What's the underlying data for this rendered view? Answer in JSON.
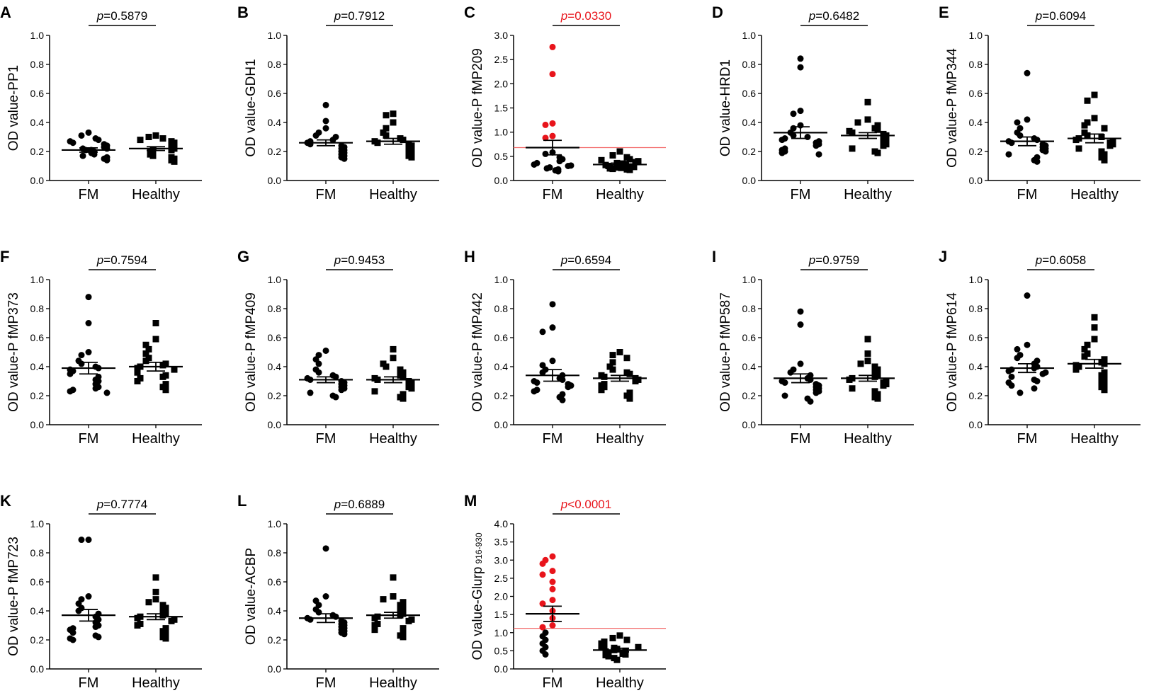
{
  "figure": {
    "x_categories": [
      "FM",
      "Healthy"
    ],
    "threshold_color": "#f26b6b",
    "highlight_color": "#e8141b",
    "point_color": "#000000"
  },
  "chart_data": [
    {
      "type": "scatter",
      "panel": "A",
      "ylabel": "OD value-PP1",
      "ylim": [
        0,
        1
      ],
      "ytick_step": 0.2,
      "ytick_decimals": 1,
      "p_label": "p",
      "p_value": "=0.5879",
      "p_highlight": false,
      "series": [
        {
          "name": "FM",
          "marker": "circle",
          "mean": 0.21,
          "sem": 0.015,
          "values": [
            0.33,
            0.31,
            0.29,
            0.28,
            0.27,
            0.26,
            0.25,
            0.24,
            0.23,
            0.22,
            0.22,
            0.21,
            0.21,
            0.2,
            0.19,
            0.18,
            0.17,
            0.16,
            0.15,
            0.14
          ]
        },
        {
          "name": "Healthy",
          "marker": "square",
          "mean": 0.22,
          "sem": 0.013,
          "values": [
            0.31,
            0.3,
            0.29,
            0.28,
            0.27,
            0.26,
            0.25,
            0.24,
            0.23,
            0.22,
            0.21,
            0.21,
            0.2,
            0.19,
            0.18,
            0.17,
            0.16,
            0.15,
            0.14,
            0.13
          ]
        }
      ]
    },
    {
      "type": "scatter",
      "panel": "B",
      "ylabel": "OD value-GDH1",
      "ylim": [
        0,
        1
      ],
      "ytick_step": 0.2,
      "ytick_decimals": 1,
      "p_label": "p",
      "p_value": "=0.7912",
      "p_highlight": false,
      "series": [
        {
          "name": "FM",
          "marker": "circle",
          "mean": 0.26,
          "sem": 0.02,
          "values": [
            0.52,
            0.41,
            0.36,
            0.33,
            0.31,
            0.3,
            0.28,
            0.27,
            0.26,
            0.25,
            0.24,
            0.23,
            0.22,
            0.21,
            0.2,
            0.19,
            0.18,
            0.17,
            0.16,
            0.15
          ]
        },
        {
          "name": "Healthy",
          "marker": "square",
          "mean": 0.27,
          "sem": 0.02,
          "values": [
            0.46,
            0.45,
            0.4,
            0.36,
            0.33,
            0.31,
            0.29,
            0.28,
            0.27,
            0.26,
            0.25,
            0.24,
            0.23,
            0.22,
            0.21,
            0.2,
            0.19,
            0.18,
            0.17,
            0.16
          ]
        }
      ]
    },
    {
      "type": "scatter",
      "panel": "C",
      "ylabel": "OD value-P fMP209",
      "ylim": [
        0,
        3
      ],
      "ytick_step": 0.5,
      "ytick_decimals": 1,
      "p_label": "p",
      "p_value": "=0.0330",
      "p_highlight": true,
      "threshold": 0.68,
      "highlight_above_threshold": true,
      "series": [
        {
          "name": "FM",
          "marker": "circle",
          "mean": 0.68,
          "sem": 0.15,
          "values": [
            2.76,
            2.2,
            1.18,
            1.15,
            0.92,
            0.88,
            0.58,
            0.55,
            0.48,
            0.44,
            0.4,
            0.36,
            0.33,
            0.31,
            0.3,
            0.27,
            0.25,
            0.23,
            0.21,
            0.19
          ]
        },
        {
          "name": "Healthy",
          "marker": "square",
          "mean": 0.33,
          "sem": 0.03,
          "values": [
            0.6,
            0.52,
            0.48,
            0.44,
            0.42,
            0.4,
            0.38,
            0.36,
            0.35,
            0.34,
            0.32,
            0.3,
            0.29,
            0.28,
            0.27,
            0.26,
            0.25,
            0.24,
            0.23,
            0.22
          ]
        }
      ]
    },
    {
      "type": "scatter",
      "panel": "D",
      "ylabel": "OD value-HRD1",
      "ylim": [
        0,
        1
      ],
      "ytick_step": 0.2,
      "ytick_decimals": 1,
      "p_label": "p",
      "p_value": "=0.6482",
      "p_highlight": false,
      "series": [
        {
          "name": "FM",
          "marker": "circle",
          "mean": 0.33,
          "sem": 0.04,
          "values": [
            0.84,
            0.78,
            0.48,
            0.46,
            0.38,
            0.36,
            0.33,
            0.31,
            0.3,
            0.29,
            0.28,
            0.27,
            0.26,
            0.25,
            0.24,
            0.22,
            0.21,
            0.2,
            0.19,
            0.18
          ]
        },
        {
          "name": "Healthy",
          "marker": "square",
          "mean": 0.31,
          "sem": 0.02,
          "values": [
            0.54,
            0.42,
            0.4,
            0.38,
            0.36,
            0.35,
            0.34,
            0.33,
            0.32,
            0.31,
            0.3,
            0.29,
            0.28,
            0.27,
            0.26,
            0.25,
            0.24,
            0.22,
            0.2,
            0.19
          ]
        }
      ]
    },
    {
      "type": "scatter",
      "panel": "E",
      "ylabel": "OD value-P fMP344",
      "ylim": [
        0,
        1
      ],
      "ytick_step": 0.2,
      "ytick_decimals": 1,
      "p_label": "p",
      "p_value": "=0.6094",
      "p_highlight": false,
      "series": [
        {
          "name": "FM",
          "marker": "circle",
          "mean": 0.27,
          "sem": 0.03,
          "values": [
            0.74,
            0.42,
            0.4,
            0.36,
            0.33,
            0.31,
            0.29,
            0.28,
            0.27,
            0.26,
            0.25,
            0.24,
            0.23,
            0.22,
            0.21,
            0.2,
            0.18,
            0.16,
            0.14,
            0.13
          ]
        },
        {
          "name": "Healthy",
          "marker": "square",
          "mean": 0.29,
          "sem": 0.03,
          "values": [
            0.59,
            0.55,
            0.43,
            0.4,
            0.38,
            0.36,
            0.33,
            0.31,
            0.3,
            0.29,
            0.28,
            0.27,
            0.26,
            0.25,
            0.24,
            0.22,
            0.2,
            0.18,
            0.16,
            0.14
          ]
        }
      ]
    },
    {
      "type": "scatter",
      "panel": "F",
      "ylabel": "OD value-P fMP373",
      "ylim": [
        0,
        1
      ],
      "ytick_step": 0.2,
      "ytick_decimals": 1,
      "p_label": "p",
      "p_value": "=0.7594",
      "p_highlight": false,
      "series": [
        {
          "name": "FM",
          "marker": "circle",
          "mean": 0.39,
          "sem": 0.04,
          "values": [
            0.88,
            0.7,
            0.5,
            0.48,
            0.44,
            0.42,
            0.4,
            0.39,
            0.38,
            0.37,
            0.35,
            0.33,
            0.31,
            0.3,
            0.28,
            0.26,
            0.25,
            0.24,
            0.23,
            0.22
          ]
        },
        {
          "name": "Healthy",
          "marker": "square",
          "mean": 0.4,
          "sem": 0.03,
          "values": [
            0.7,
            0.59,
            0.55,
            0.52,
            0.49,
            0.46,
            0.44,
            0.42,
            0.41,
            0.4,
            0.39,
            0.38,
            0.36,
            0.34,
            0.33,
            0.32,
            0.3,
            0.28,
            0.26,
            0.24
          ]
        }
      ]
    },
    {
      "type": "scatter",
      "panel": "G",
      "ylabel": "OD value-P fMP409",
      "ylim": [
        0,
        1
      ],
      "ytick_step": 0.2,
      "ytick_decimals": 1,
      "p_label": "p",
      "p_value": "=0.9453",
      "p_highlight": false,
      "series": [
        {
          "name": "FM",
          "marker": "circle",
          "mean": 0.31,
          "sem": 0.02,
          "values": [
            0.51,
            0.48,
            0.45,
            0.42,
            0.38,
            0.36,
            0.34,
            0.33,
            0.32,
            0.31,
            0.3,
            0.29,
            0.28,
            0.27,
            0.26,
            0.25,
            0.24,
            0.22,
            0.2,
            0.19
          ]
        },
        {
          "name": "Healthy",
          "marker": "square",
          "mean": 0.31,
          "sem": 0.02,
          "values": [
            0.52,
            0.46,
            0.42,
            0.4,
            0.38,
            0.36,
            0.34,
            0.33,
            0.32,
            0.31,
            0.3,
            0.29,
            0.28,
            0.27,
            0.26,
            0.25,
            0.23,
            0.21,
            0.19,
            0.18
          ]
        }
      ]
    },
    {
      "type": "scatter",
      "panel": "H",
      "ylabel": "OD value-P fMP442",
      "ylim": [
        0,
        1
      ],
      "ytick_step": 0.2,
      "ytick_decimals": 1,
      "p_label": "p",
      "p_value": "=0.6594",
      "p_highlight": false,
      "series": [
        {
          "name": "FM",
          "marker": "circle",
          "mean": 0.34,
          "sem": 0.04,
          "values": [
            0.83,
            0.67,
            0.64,
            0.44,
            0.41,
            0.38,
            0.36,
            0.34,
            0.32,
            0.31,
            0.3,
            0.29,
            0.28,
            0.27,
            0.26,
            0.24,
            0.23,
            0.21,
            0.19,
            0.17
          ]
        },
        {
          "name": "Healthy",
          "marker": "square",
          "mean": 0.32,
          "sem": 0.02,
          "values": [
            0.5,
            0.48,
            0.46,
            0.43,
            0.4,
            0.38,
            0.36,
            0.35,
            0.34,
            0.33,
            0.32,
            0.31,
            0.3,
            0.28,
            0.27,
            0.26,
            0.24,
            0.22,
            0.2,
            0.18
          ]
        }
      ]
    },
    {
      "type": "scatter",
      "panel": "I",
      "ylabel": "OD value-P fMP587",
      "ylim": [
        0,
        1
      ],
      "ytick_step": 0.2,
      "ytick_decimals": 1,
      "p_label": "p",
      "p_value": "=0.9759",
      "p_highlight": false,
      "series": [
        {
          "name": "FM",
          "marker": "circle",
          "mean": 0.32,
          "sem": 0.03,
          "values": [
            0.78,
            0.69,
            0.42,
            0.38,
            0.36,
            0.34,
            0.32,
            0.31,
            0.3,
            0.29,
            0.28,
            0.27,
            0.26,
            0.25,
            0.24,
            0.23,
            0.22,
            0.2,
            0.18,
            0.16
          ]
        },
        {
          "name": "Healthy",
          "marker": "square",
          "mean": 0.32,
          "sem": 0.02,
          "values": [
            0.59,
            0.49,
            0.44,
            0.42,
            0.4,
            0.38,
            0.36,
            0.34,
            0.33,
            0.32,
            0.31,
            0.3,
            0.29,
            0.28,
            0.27,
            0.25,
            0.23,
            0.21,
            0.19,
            0.18
          ]
        }
      ]
    },
    {
      "type": "scatter",
      "panel": "J",
      "ylabel": "OD value-P fMP614",
      "ylim": [
        0,
        1
      ],
      "ytick_step": 0.2,
      "ytick_decimals": 1,
      "p_label": "p",
      "p_value": "=0.6058",
      "p_highlight": false,
      "series": [
        {
          "name": "FM",
          "marker": "circle",
          "mean": 0.39,
          "sem": 0.03,
          "values": [
            0.89,
            0.55,
            0.52,
            0.48,
            0.46,
            0.44,
            0.42,
            0.4,
            0.39,
            0.38,
            0.37,
            0.36,
            0.35,
            0.33,
            0.31,
            0.3,
            0.29,
            0.27,
            0.25,
            0.22
          ]
        },
        {
          "name": "Healthy",
          "marker": "square",
          "mean": 0.42,
          "sem": 0.03,
          "values": [
            0.74,
            0.67,
            0.59,
            0.55,
            0.52,
            0.49,
            0.47,
            0.45,
            0.43,
            0.42,
            0.41,
            0.4,
            0.38,
            0.36,
            0.34,
            0.32,
            0.3,
            0.28,
            0.26,
            0.24
          ]
        }
      ]
    },
    {
      "type": "scatter",
      "panel": "K",
      "ylabel": "OD value-P fMP723",
      "ylim": [
        0,
        1
      ],
      "ytick_step": 0.2,
      "ytick_decimals": 1,
      "p_label": "p",
      "p_value": "=0.7774",
      "p_highlight": false,
      "series": [
        {
          "name": "FM",
          "marker": "circle",
          "mean": 0.37,
          "sem": 0.04,
          "values": [
            0.89,
            0.89,
            0.5,
            0.48,
            0.45,
            0.42,
            0.4,
            0.38,
            0.36,
            0.34,
            0.32,
            0.3,
            0.29,
            0.28,
            0.27,
            0.25,
            0.23,
            0.22,
            0.21,
            0.2
          ]
        },
        {
          "name": "Healthy",
          "marker": "square",
          "mean": 0.36,
          "sem": 0.02,
          "values": [
            0.63,
            0.53,
            0.48,
            0.46,
            0.44,
            0.42,
            0.4,
            0.38,
            0.37,
            0.36,
            0.35,
            0.34,
            0.33,
            0.31,
            0.3,
            0.28,
            0.26,
            0.24,
            0.22,
            0.21
          ]
        }
      ]
    },
    {
      "type": "scatter",
      "panel": "L",
      "ylabel": "OD value-ACBP",
      "ylim": [
        0,
        1
      ],
      "ytick_step": 0.2,
      "ytick_decimals": 1,
      "p_label": "p",
      "p_value": "=0.6889",
      "p_highlight": false,
      "series": [
        {
          "name": "FM",
          "marker": "circle",
          "mean": 0.35,
          "sem": 0.03,
          "values": [
            0.83,
            0.5,
            0.47,
            0.44,
            0.41,
            0.39,
            0.37,
            0.36,
            0.35,
            0.34,
            0.33,
            0.32,
            0.31,
            0.3,
            0.29,
            0.28,
            0.27,
            0.26,
            0.25,
            0.24
          ]
        },
        {
          "name": "Healthy",
          "marker": "square",
          "mean": 0.37,
          "sem": 0.02,
          "values": [
            0.63,
            0.5,
            0.48,
            0.46,
            0.44,
            0.42,
            0.4,
            0.38,
            0.37,
            0.36,
            0.35,
            0.34,
            0.33,
            0.31,
            0.3,
            0.28,
            0.27,
            0.25,
            0.23,
            0.22
          ]
        }
      ]
    },
    {
      "type": "scatter",
      "panel": "M",
      "ylabel": "OD value-Glurp",
      "ylabel_subscript": "916-930",
      "ylim": [
        0,
        4
      ],
      "ytick_step": 0.5,
      "ytick_decimals": 1,
      "p_label": "p",
      "p_value": "<0.0001",
      "p_highlight": true,
      "threshold": 1.12,
      "highlight_above_threshold": true,
      "series": [
        {
          "name": "FM",
          "marker": "circle",
          "mean": 1.52,
          "sem": 0.21,
          "values": [
            3.1,
            3.0,
            2.9,
            2.7,
            2.6,
            2.4,
            2.2,
            1.9,
            1.8,
            1.6,
            1.4,
            1.2,
            1.15,
            1.0,
            0.9,
            0.8,
            0.7,
            0.6,
            0.5,
            0.4
          ]
        },
        {
          "name": "Healthy",
          "marker": "square",
          "mean": 0.52,
          "sem": 0.05,
          "values": [
            0.92,
            0.85,
            0.8,
            0.75,
            0.7,
            0.65,
            0.62,
            0.6,
            0.58,
            0.55,
            0.52,
            0.5,
            0.48,
            0.45,
            0.42,
            0.4,
            0.38,
            0.35,
            0.3,
            0.25
          ]
        }
      ]
    }
  ]
}
